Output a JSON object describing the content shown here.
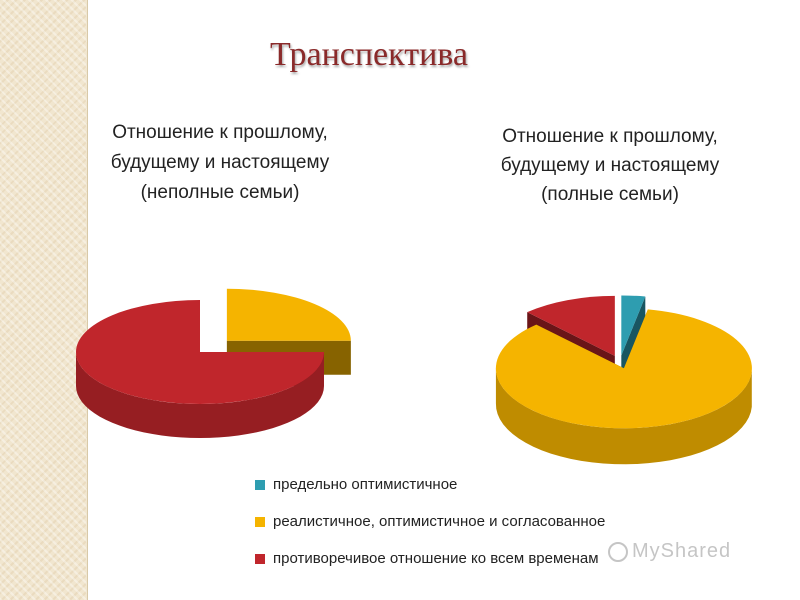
{
  "slide": {
    "title": "Транспектива"
  },
  "colors": {
    "optimistic": "#2e9db0",
    "realistic": "#f5b400",
    "contradictory": "#c0262c"
  },
  "legend": [
    {
      "key": "optimistic",
      "label": "предельно оптимистичное"
    },
    {
      "key": "realistic",
      "label": "реалистичное, оптимистичное и согласованное"
    },
    {
      "key": "contradictory",
      "label": "противоречивое отношение ко всем временам"
    }
  ],
  "watermark": {
    "text": "MyShared"
  },
  "chart_data": [
    {
      "type": "pie",
      "title": "Отношение к прошлому, будущему и настоящему (неполные семьи)",
      "categories": [
        "предельно оптимистичное",
        "реалистичное, оптимистичное и согласованное",
        "противоречивое отношение ко всем временам"
      ],
      "values": [
        0,
        25,
        75
      ],
      "exploded": "реалистичное, оптимистичное и согласованное"
    },
    {
      "type": "pie",
      "title": "Отношение к прошлому, будущему и настоящему (полные семьи)",
      "categories": [
        "предельно оптимистичное",
        "реалистичное, оптимистичное и согласованное",
        "противоречивое отношение ко всем временам"
      ],
      "values": [
        3,
        85,
        12
      ],
      "exploded": "all"
    }
  ]
}
